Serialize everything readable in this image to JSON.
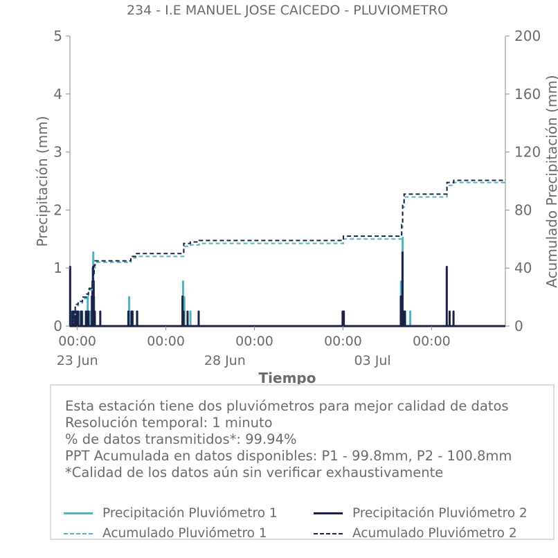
{
  "chart_data": {
    "type": "line",
    "title": "234 - I.E MANUEL JOSE CAICEDO - PLUVIOMETRO",
    "xlabel": "Tiempo",
    "ylabel": "Precipitación (mm)",
    "ylabel_right": "Acumulado Precipitación (mm)",
    "x_range": [
      "2023-06-22T18:00",
      "2023-07-07T12:00"
    ],
    "ylim": [
      0,
      5
    ],
    "ylim_right": [
      0,
      200
    ],
    "yticks": [
      "0",
      "1",
      "2",
      "3",
      "4",
      "5"
    ],
    "yticks_right": [
      "0",
      "40",
      "80",
      "120",
      "160",
      "200"
    ],
    "x_tick_labels": [
      {
        "time": "2023-06-23T00:00",
        "label": "00:00",
        "date_label": "23 Jun"
      },
      {
        "time": "2023-06-26T00:00",
        "label": "00:00",
        "date_label": ""
      },
      {
        "time": "2023-06-28T00:00",
        "label": "",
        "date_label": "28 Jun"
      },
      {
        "time": "2023-06-29T00:00",
        "label": "00:00",
        "date_label": ""
      },
      {
        "time": "2023-07-02T00:00",
        "label": "00:00",
        "date_label": ""
      },
      {
        "time": "2023-07-03T00:00",
        "label": "",
        "date_label": "03 Jul"
      },
      {
        "time": "2023-07-05T00:00",
        "label": "00:00",
        "date_label": ""
      }
    ],
    "grid": false,
    "legend_position": "bottom",
    "series": [
      {
        "name": "Precipitación Pluviómetro 1",
        "axis": "left",
        "style": "bars",
        "color": "#4fb3c1",
        "points": [
          [
            "2023-06-22T18:20",
            0.25
          ],
          [
            "2023-06-22T20:10",
            0.25
          ],
          [
            "2023-06-22T21:30",
            0.25
          ],
          [
            "2023-06-22T23:00",
            0.25
          ],
          [
            "2023-06-23T00:10",
            0.25
          ],
          [
            "2023-06-23T01:10",
            0.25
          ],
          [
            "2023-06-23T04:00",
            0.25
          ],
          [
            "2023-06-23T07:10",
            0.25
          ],
          [
            "2023-06-23T07:40",
            0.25
          ],
          [
            "2023-06-23T08:30",
            0.5
          ],
          [
            "2023-06-23T10:10",
            0.25
          ],
          [
            "2023-06-23T12:00",
            0.5
          ],
          [
            "2023-06-23T12:30",
            1.0
          ],
          [
            "2023-06-23T13:00",
            1.27
          ],
          [
            "2023-06-23T13:40",
            0.5
          ],
          [
            "2023-06-23T14:20",
            0.25
          ],
          [
            "2023-06-24T18:10",
            0.5
          ],
          [
            "2023-06-24T21:00",
            0.25
          ],
          [
            "2023-06-25T00:30",
            0.25
          ],
          [
            "2023-06-26T14:00",
            0.77
          ],
          [
            "2023-06-26T15:00",
            0.5
          ],
          [
            "2023-06-26T20:00",
            0.25
          ],
          [
            "2023-07-02T00:10",
            0.25
          ],
          [
            "2023-07-03T23:10",
            0.77
          ],
          [
            "2023-07-04T00:30",
            1.52
          ],
          [
            "2023-07-04T01:30",
            0.25
          ],
          [
            "2023-07-04T02:40",
            0.25
          ],
          [
            "2023-07-04T06:40",
            0.25
          ]
        ]
      },
      {
        "name": "Precipitación Pluviómetro 2",
        "axis": "left",
        "style": "bars",
        "color": "#1c2146",
        "points": [
          [
            "2023-06-22T18:10",
            1.02
          ],
          [
            "2023-06-22T20:00",
            0.25
          ],
          [
            "2023-06-22T21:00",
            0.25
          ],
          [
            "2023-06-22T22:00",
            0.25
          ],
          [
            "2023-06-22T23:30",
            0.25
          ],
          [
            "2023-06-23T00:40",
            0.25
          ],
          [
            "2023-06-23T03:00",
            0.25
          ],
          [
            "2023-06-23T03:40",
            0.25
          ],
          [
            "2023-06-23T07:00",
            0.25
          ],
          [
            "2023-06-23T08:20",
            0.25
          ],
          [
            "2023-06-23T09:00",
            0.25
          ],
          [
            "2023-06-23T11:50",
            0.51
          ],
          [
            "2023-06-23T12:20",
            0.77
          ],
          [
            "2023-06-23T12:50",
            1.02
          ],
          [
            "2023-06-23T13:20",
            0.77
          ],
          [
            "2023-06-23T14:10",
            0.25
          ],
          [
            "2023-06-23T18:40",
            0.25
          ],
          [
            "2023-06-24T17:30",
            0.25
          ],
          [
            "2023-06-24T20:00",
            0.25
          ],
          [
            "2023-06-24T20:50",
            0.25
          ],
          [
            "2023-06-25T00:40",
            0.25
          ],
          [
            "2023-06-26T13:30",
            0.51
          ],
          [
            "2023-06-26T14:20",
            0.25
          ],
          [
            "2023-06-26T17:40",
            0.25
          ],
          [
            "2023-06-27T02:40",
            0.25
          ],
          [
            "2023-07-01T23:40",
            0.25
          ],
          [
            "2023-07-02T00:40",
            0.25
          ],
          [
            "2023-07-03T23:00",
            0.51
          ],
          [
            "2023-07-03T23:50",
            0.51
          ],
          [
            "2023-07-04T00:20",
            1.27
          ],
          [
            "2023-07-04T01:20",
            0.25
          ],
          [
            "2023-07-04T02:10",
            0.25
          ],
          [
            "2023-07-05T12:20",
            1.02
          ],
          [
            "2023-07-05T14:40",
            0.25
          ],
          [
            "2023-07-05T17:50",
            0.25
          ]
        ]
      },
      {
        "name": "Acumulado Pluviómetro 1",
        "axis": "right",
        "style": "dashed",
        "color": "#4fb3c1",
        "points": [
          [
            "2023-06-22T18:00",
            0
          ],
          [
            "2023-06-22T19:40",
            2
          ],
          [
            "2023-06-22T21:00",
            8
          ],
          [
            "2023-06-22T22:20",
            14
          ],
          [
            "2023-06-23T00:40",
            16
          ],
          [
            "2023-06-23T03:30",
            16
          ],
          [
            "2023-06-23T04:10",
            19
          ],
          [
            "2023-06-23T07:30",
            21
          ],
          [
            "2023-06-23T09:00",
            23
          ],
          [
            "2023-06-23T09:40",
            25
          ],
          [
            "2023-06-23T12:00",
            26
          ],
          [
            "2023-06-23T12:40",
            34
          ],
          [
            "2023-06-23T13:40",
            40
          ],
          [
            "2023-06-23T14:30",
            44
          ],
          [
            "2023-06-24T17:50",
            44
          ],
          [
            "2023-06-24T19:30",
            47
          ],
          [
            "2023-06-24T23:30",
            48
          ],
          [
            "2023-06-26T13:00",
            48
          ],
          [
            "2023-06-26T14:30",
            55
          ],
          [
            "2023-06-26T20:00",
            56
          ],
          [
            "2023-06-27T03:00",
            57
          ],
          [
            "2023-07-01T23:10",
            57
          ],
          [
            "2023-07-02T00:20",
            60
          ],
          [
            "2023-07-03T22:50",
            60
          ],
          [
            "2023-07-03T23:40",
            68
          ],
          [
            "2023-07-04T00:30",
            82
          ],
          [
            "2023-07-04T01:40",
            89
          ],
          [
            "2023-07-05T12:00",
            89
          ],
          [
            "2023-07-05T12:30",
            97
          ],
          [
            "2023-07-05T18:00",
            99
          ],
          [
            "2023-07-07T12:00",
            99.8
          ]
        ]
      },
      {
        "name": "Acumulado Pluviómetro 2",
        "axis": "right",
        "style": "dashed",
        "color": "#1c2146",
        "points": [
          [
            "2023-06-22T18:00",
            0
          ],
          [
            "2023-06-22T19:40",
            3
          ],
          [
            "2023-06-22T21:00",
            9
          ],
          [
            "2023-06-22T22:20",
            15
          ],
          [
            "2023-06-23T00:40",
            17
          ],
          [
            "2023-06-23T03:30",
            17
          ],
          [
            "2023-06-23T04:10",
            20
          ],
          [
            "2023-06-23T07:30",
            22
          ],
          [
            "2023-06-23T09:00",
            24
          ],
          [
            "2023-06-23T09:40",
            26
          ],
          [
            "2023-06-23T12:00",
            27
          ],
          [
            "2023-06-23T12:40",
            35
          ],
          [
            "2023-06-23T13:40",
            42
          ],
          [
            "2023-06-23T14:30",
            45
          ],
          [
            "2023-06-24T17:50",
            45
          ],
          [
            "2023-06-24T19:30",
            48
          ],
          [
            "2023-06-24T23:30",
            50
          ],
          [
            "2023-06-26T13:00",
            50
          ],
          [
            "2023-06-26T14:30",
            57
          ],
          [
            "2023-06-26T20:00",
            58
          ],
          [
            "2023-06-27T03:00",
            59
          ],
          [
            "2023-07-01T23:10",
            59
          ],
          [
            "2023-07-02T00:20",
            62
          ],
          [
            "2023-07-03T22:50",
            62
          ],
          [
            "2023-07-03T23:40",
            70
          ],
          [
            "2023-07-04T00:30",
            84
          ],
          [
            "2023-07-04T01:40",
            91
          ],
          [
            "2023-07-05T12:00",
            91
          ],
          [
            "2023-07-05T12:30",
            99
          ],
          [
            "2023-07-05T18:00",
            100.5
          ],
          [
            "2023-07-07T12:00",
            100.8
          ]
        ]
      }
    ]
  },
  "info": {
    "lines": [
      "Esta estación tiene dos pluviómetros para mejor calidad de datos",
      "Resolución temporal: 1 minuto",
      "% de datos transmitidos*: 99.94%",
      "PPT Acumulada en datos disponibles: P1 - 99.8mm, P2 - 100.8mm",
      "*Calidad de los datos aún sin verificar exhaustivamente"
    ]
  },
  "legend": [
    {
      "label": "Precipitación Pluviómetro 1",
      "color": "#4fb3c1",
      "dashed": false
    },
    {
      "label": "Precipitación Pluviómetro 2",
      "color": "#1c2146",
      "dashed": false
    },
    {
      "label": "Acumulado Pluviómetro 1",
      "color": "#4fb3c1",
      "dashed": true
    },
    {
      "label": "Acumulado Pluviómetro 2",
      "color": "#1c2146",
      "dashed": true
    }
  ]
}
